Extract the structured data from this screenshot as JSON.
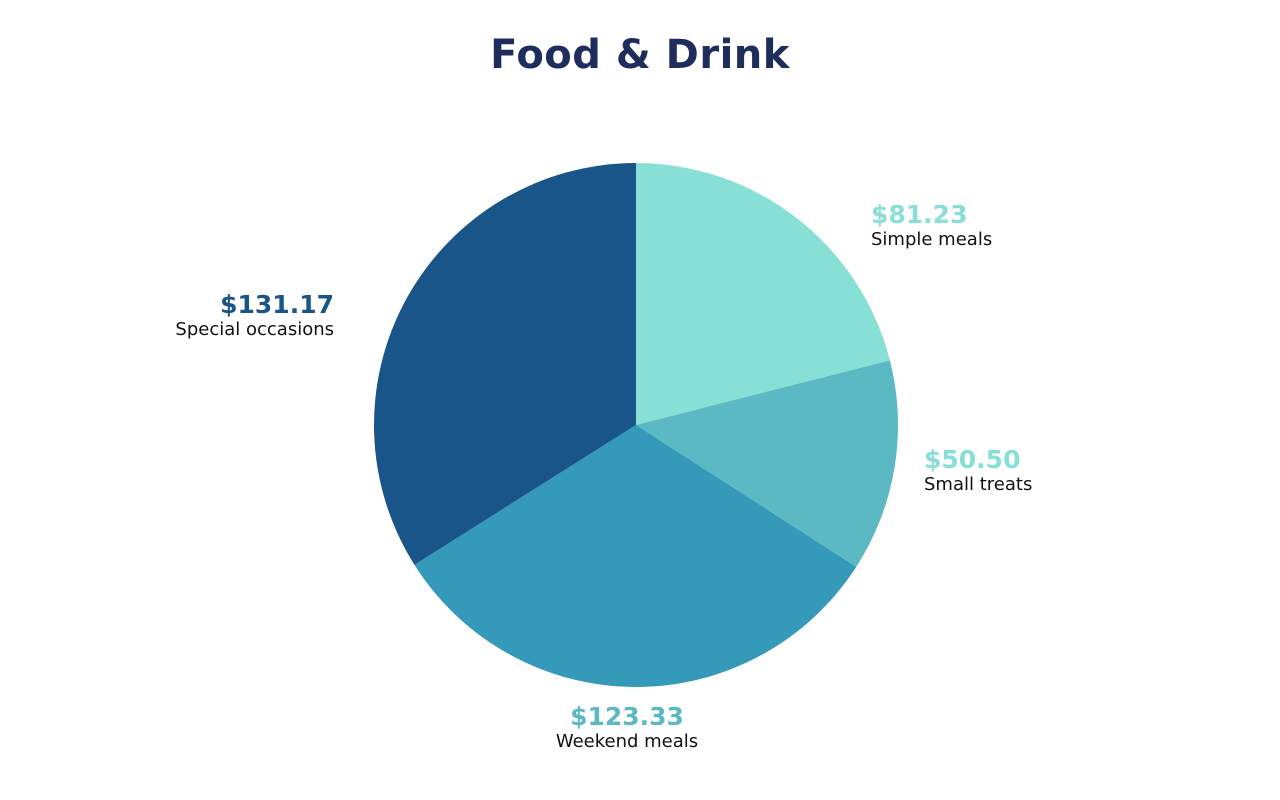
{
  "colors": {
    "title": "#1f2d5c",
    "background": "#ffffff",
    "label_text": "#111111"
  },
  "chart_data": {
    "type": "pie",
    "title": "Food & Drink",
    "start": "12 o'clock",
    "direction": "clockwise",
    "slices": [
      {
        "name": "Simple meals",
        "value": 81.23,
        "value_label": "$81.23",
        "color": "#88dfd6",
        "label_color": "#88dfd6"
      },
      {
        "name": "Small treats",
        "value": 50.5,
        "value_label": "$50.50",
        "color": "#5bb9c4",
        "label_color": "#88dfd6"
      },
      {
        "name": "Weekend meals",
        "value": 123.33,
        "value_label": "$123.33",
        "color": "#359ab9",
        "label_color": "#5bb9c4"
      },
      {
        "name": "Special occasions",
        "value": 131.17,
        "value_label": "$131.17",
        "color": "#1a5589",
        "label_color": "#1a5589"
      }
    ]
  }
}
